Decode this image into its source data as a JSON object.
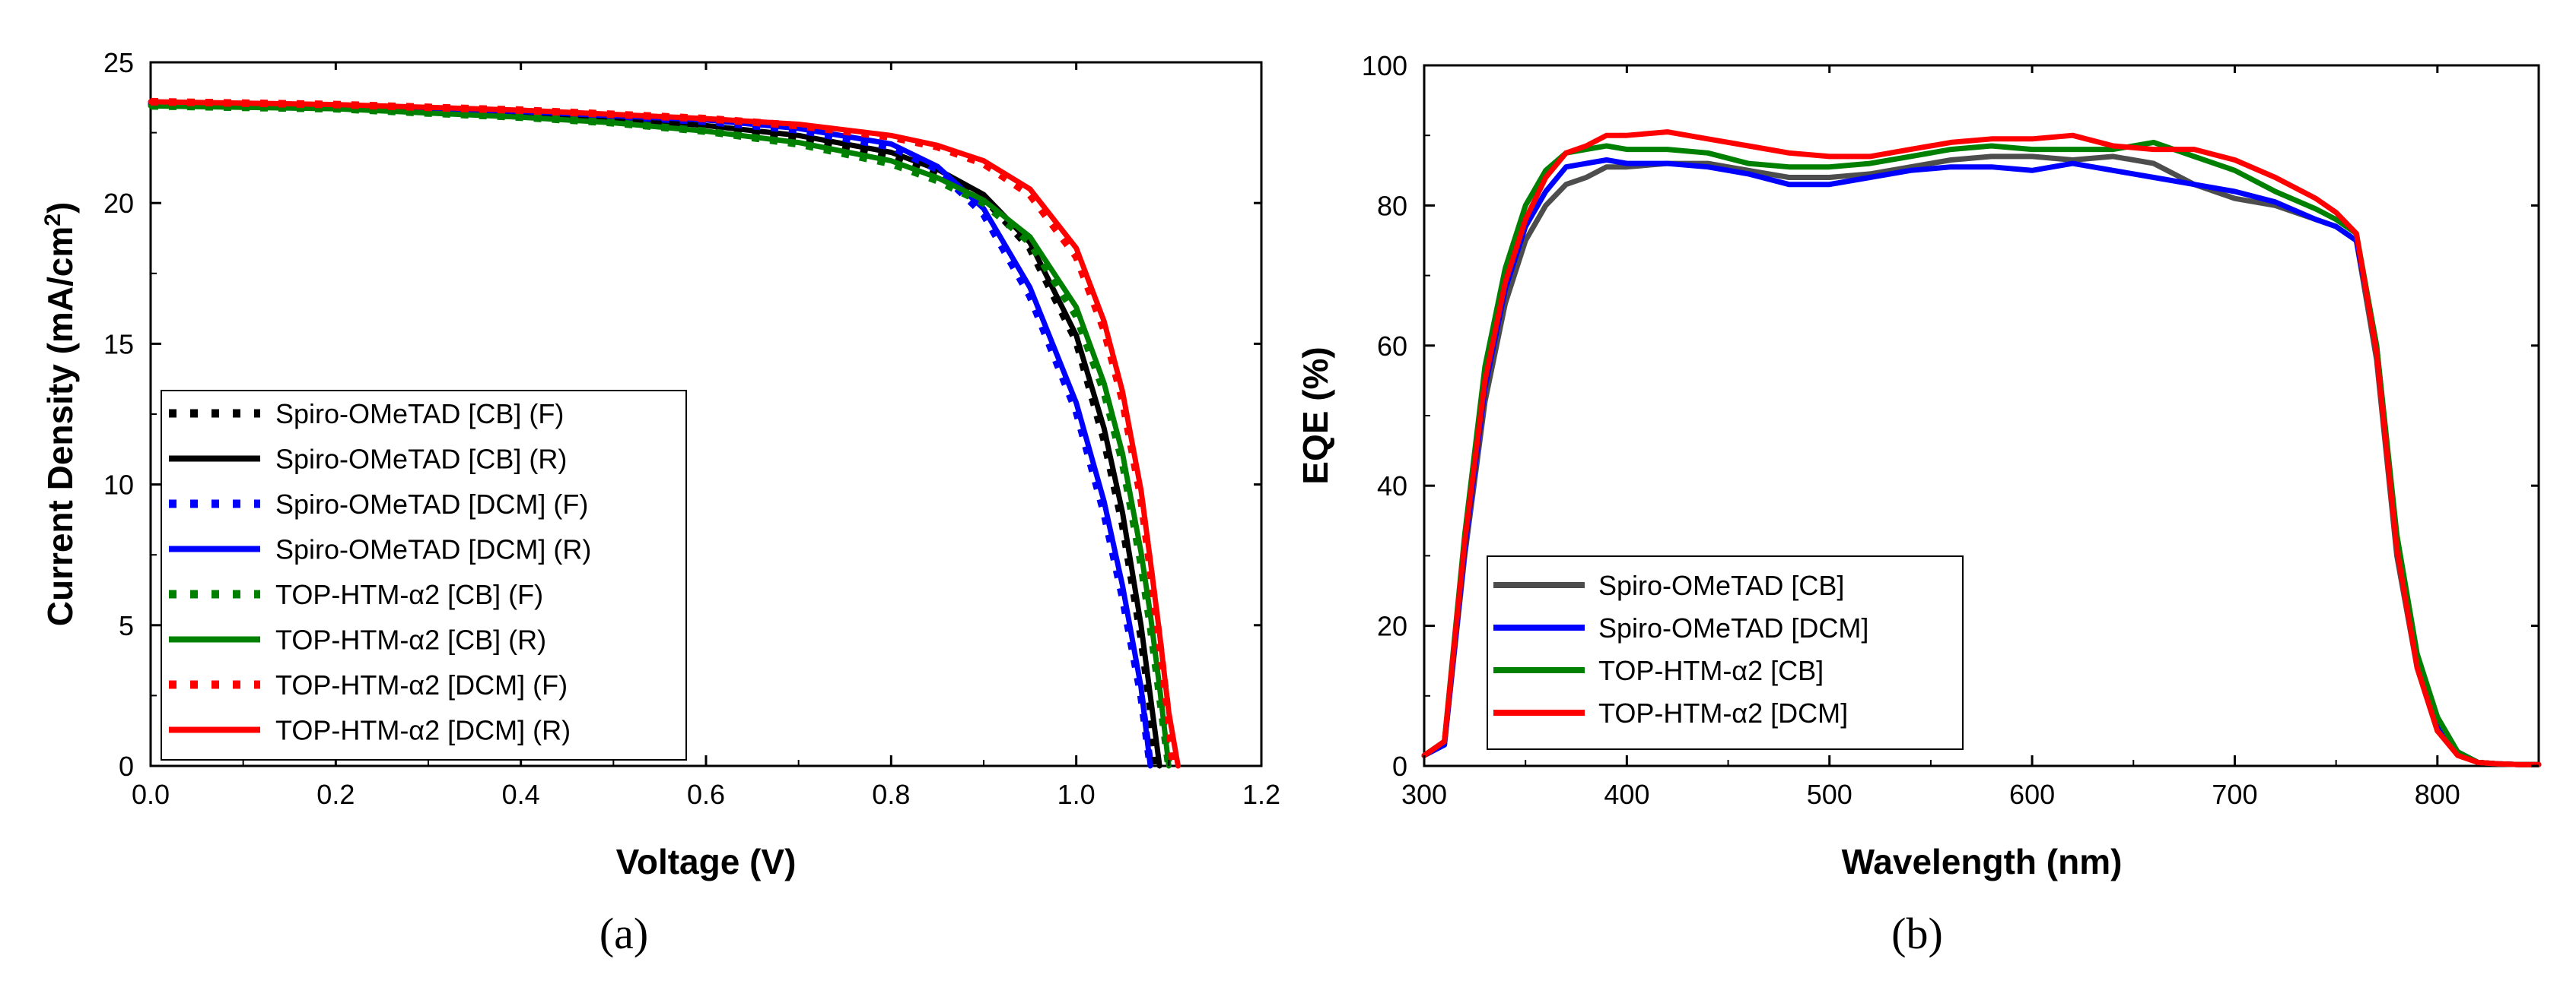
{
  "chart_data": [
    {
      "panel": "(a)",
      "type": "line",
      "xlabel": "Voltage (V)",
      "ylabel_main": "Current Density (mA/cm",
      "ylabel_sup": "2",
      "ylabel_end": ")",
      "xlim": [
        0.0,
        1.2
      ],
      "ylim": [
        0,
        25
      ],
      "xticks": [
        0.0,
        0.2,
        0.4,
        0.6,
        0.8,
        1.0,
        1.2
      ],
      "xtick_labels": [
        "0.0",
        "0.2",
        "0.4",
        "0.6",
        "0.8",
        "1.0",
        "1.2"
      ],
      "yticks": [
        0,
        5,
        10,
        15,
        20,
        25
      ],
      "ytick_labels": [
        "0",
        "5",
        "10",
        "15",
        "20",
        "25"
      ],
      "legend_position": "bottom-left",
      "series": [
        {
          "name": "Spiro-OMeTAD [CB] (F)",
          "color": "#000000",
          "style": "dotted",
          "x": [
            0.0,
            0.1,
            0.2,
            0.3,
            0.4,
            0.5,
            0.6,
            0.7,
            0.8,
            0.85,
            0.9,
            0.95,
            1.0,
            1.03,
            1.05,
            1.07,
            1.08,
            1.085
          ],
          "y": [
            23.5,
            23.45,
            23.4,
            23.3,
            23.2,
            23.0,
            22.7,
            22.3,
            21.7,
            21.1,
            20.2,
            18.4,
            15.1,
            11.6,
            8.6,
            4.6,
            2.1,
            0.0
          ]
        },
        {
          "name": "Spiro-OMeTAD [CB] (R)",
          "color": "#000000",
          "style": "solid",
          "x": [
            0.0,
            0.1,
            0.2,
            0.3,
            0.4,
            0.5,
            0.6,
            0.7,
            0.8,
            0.85,
            0.9,
            0.95,
            1.0,
            1.03,
            1.05,
            1.07,
            1.08,
            1.09
          ],
          "y": [
            23.5,
            23.45,
            23.4,
            23.3,
            23.2,
            23.0,
            22.75,
            22.4,
            21.8,
            21.2,
            20.3,
            18.6,
            15.3,
            12.0,
            9.0,
            5.0,
            2.5,
            0.0
          ]
        },
        {
          "name": "Spiro-OMeTAD [DCM] (F)",
          "color": "#0000ff",
          "style": "dotted",
          "x": [
            0.0,
            0.1,
            0.2,
            0.3,
            0.4,
            0.5,
            0.6,
            0.7,
            0.8,
            0.85,
            0.9,
            0.95,
            1.0,
            1.03,
            1.05,
            1.07,
            1.08
          ],
          "y": [
            23.55,
            23.5,
            23.45,
            23.35,
            23.25,
            23.1,
            22.9,
            22.6,
            22.0,
            21.2,
            19.6,
            16.7,
            12.6,
            9.0,
            6.0,
            2.5,
            0.0
          ]
        },
        {
          "name": "Spiro-OMeTAD [DCM] (R)",
          "color": "#0000ff",
          "style": "solid",
          "x": [
            0.0,
            0.1,
            0.2,
            0.3,
            0.4,
            0.5,
            0.6,
            0.7,
            0.8,
            0.85,
            0.9,
            0.95,
            1.0,
            1.03,
            1.05,
            1.07,
            1.08
          ],
          "y": [
            23.55,
            23.5,
            23.45,
            23.35,
            23.25,
            23.1,
            22.95,
            22.65,
            22.1,
            21.3,
            19.8,
            17.0,
            12.9,
            9.4,
            6.4,
            2.8,
            0.0
          ]
        },
        {
          "name": "TOP-HTM-α2 [CB] (F)",
          "color": "#008000",
          "style": "dotted",
          "x": [
            0.0,
            0.1,
            0.2,
            0.3,
            0.4,
            0.5,
            0.6,
            0.7,
            0.8,
            0.85,
            0.9,
            0.95,
            1.0,
            1.03,
            1.05,
            1.07,
            1.08,
            1.09,
            1.1
          ],
          "y": [
            23.45,
            23.4,
            23.35,
            23.2,
            23.05,
            22.85,
            22.55,
            22.1,
            21.4,
            20.8,
            20.0,
            18.6,
            16.0,
            13.3,
            10.8,
            7.2,
            5.0,
            2.5,
            0.0
          ]
        },
        {
          "name": "TOP-HTM-α2 [CB] (R)",
          "color": "#008000",
          "style": "solid",
          "x": [
            0.0,
            0.1,
            0.2,
            0.3,
            0.4,
            0.5,
            0.6,
            0.7,
            0.8,
            0.85,
            0.9,
            0.95,
            1.0,
            1.03,
            1.05,
            1.07,
            1.08,
            1.09,
            1.1
          ],
          "y": [
            23.45,
            23.4,
            23.35,
            23.2,
            23.05,
            22.85,
            22.55,
            22.15,
            21.5,
            20.9,
            20.1,
            18.8,
            16.3,
            13.6,
            11.1,
            7.6,
            5.4,
            2.8,
            0.0
          ]
        },
        {
          "name": "TOP-HTM-α2 [DCM] (F)",
          "color": "#ff0000",
          "style": "dotted",
          "x": [
            0.0,
            0.1,
            0.2,
            0.3,
            0.4,
            0.5,
            0.6,
            0.7,
            0.8,
            0.85,
            0.9,
            0.95,
            1.0,
            1.03,
            1.05,
            1.07,
            1.08,
            1.09,
            1.1,
            1.105
          ],
          "y": [
            23.6,
            23.55,
            23.5,
            23.4,
            23.3,
            23.15,
            23.0,
            22.75,
            22.35,
            22.0,
            21.4,
            20.3,
            18.1,
            15.5,
            13.0,
            9.5,
            7.0,
            4.4,
            1.6,
            0.0
          ]
        },
        {
          "name": "TOP-HTM-α2 [DCM] (R)",
          "color": "#ff0000",
          "style": "solid",
          "x": [
            0.0,
            0.1,
            0.2,
            0.3,
            0.4,
            0.5,
            0.6,
            0.7,
            0.8,
            0.85,
            0.9,
            0.95,
            1.0,
            1.03,
            1.05,
            1.07,
            1.08,
            1.09,
            1.1,
            1.11
          ],
          "y": [
            23.6,
            23.55,
            23.5,
            23.4,
            23.3,
            23.15,
            23.0,
            22.8,
            22.4,
            22.05,
            21.5,
            20.5,
            18.4,
            15.8,
            13.3,
            9.8,
            7.3,
            4.7,
            1.9,
            0.0
          ]
        }
      ]
    },
    {
      "panel": "(b)",
      "type": "line",
      "xlabel": "Wavelength (nm)",
      "ylabel": "EQE (%)",
      "xlim": [
        300,
        850
      ],
      "ylim": [
        0,
        100
      ],
      "xticks": [
        300,
        400,
        500,
        600,
        700,
        800
      ],
      "xtick_labels": [
        "300",
        "400",
        "500",
        "600",
        "700",
        "800"
      ],
      "yticks": [
        0,
        20,
        40,
        60,
        80,
        100
      ],
      "ytick_labels": [
        "0",
        "20",
        "40",
        "60",
        "80",
        "100"
      ],
      "legend_position": "bottom-left",
      "series": [
        {
          "name": "Spiro-OMeTAD [CB]",
          "color": "#4d4d4d",
          "style": "solid",
          "x": [
            300,
            310,
            320,
            330,
            340,
            350,
            360,
            370,
            380,
            390,
            400,
            420,
            440,
            460,
            480,
            500,
            520,
            540,
            560,
            580,
            600,
            620,
            640,
            660,
            680,
            700,
            720,
            740,
            750,
            760,
            770,
            780,
            790,
            800,
            810,
            820,
            830,
            840,
            850
          ],
          "y": [
            1.5,
            3,
            30,
            52,
            66,
            75,
            80,
            83,
            84,
            85.5,
            85.5,
            86,
            86,
            85,
            84,
            84,
            84.5,
            85.5,
            86.5,
            87,
            87,
            86.5,
            87,
            86,
            83,
            81,
            80,
            78,
            77,
            75,
            58,
            30,
            14,
            5,
            2,
            0.5,
            0.3,
            0.2,
            0.2
          ]
        },
        {
          "name": "Spiro-OMeTAD [DCM]",
          "color": "#0000ff",
          "style": "solid",
          "x": [
            300,
            310,
            320,
            330,
            340,
            350,
            360,
            370,
            380,
            390,
            400,
            420,
            440,
            460,
            480,
            500,
            520,
            540,
            560,
            580,
            600,
            620,
            640,
            660,
            680,
            700,
            720,
            740,
            750,
            760,
            770,
            780,
            790,
            800,
            810,
            820,
            830,
            840,
            850
          ],
          "y": [
            1.5,
            3,
            31,
            54,
            68,
            77,
            82,
            85.5,
            86,
            86.5,
            86,
            86,
            85.5,
            84.5,
            83,
            83,
            84,
            85,
            85.5,
            85.5,
            85,
            86,
            85,
            84,
            83,
            82,
            80.5,
            78,
            77,
            75,
            60,
            32,
            15,
            6,
            2,
            0.5,
            0.3,
            0.2,
            0.2
          ]
        },
        {
          "name": "TOP-HTM-α2 [CB]",
          "color": "#008000",
          "style": "solid",
          "x": [
            300,
            310,
            320,
            330,
            340,
            350,
            360,
            370,
            380,
            390,
            400,
            420,
            440,
            460,
            480,
            500,
            520,
            540,
            560,
            580,
            600,
            620,
            640,
            660,
            680,
            700,
            720,
            740,
            750,
            760,
            770,
            780,
            790,
            800,
            810,
            820,
            830,
            840,
            850
          ],
          "y": [
            1.5,
            3.5,
            33,
            57,
            71,
            80,
            85,
            87.5,
            88,
            88.5,
            88,
            88,
            87.5,
            86,
            85.5,
            85.5,
            86,
            87,
            88,
            88.5,
            88,
            88,
            88,
            89,
            87,
            85,
            82,
            79.5,
            78,
            76,
            60,
            33,
            16,
            7,
            2,
            0.5,
            0.3,
            0.2,
            0.2
          ]
        },
        {
          "name": "TOP-HTM-α2 [DCM]",
          "color": "#ff0000",
          "style": "solid",
          "x": [
            300,
            310,
            320,
            330,
            340,
            350,
            360,
            370,
            380,
            390,
            400,
            420,
            440,
            460,
            480,
            500,
            520,
            540,
            560,
            580,
            600,
            620,
            640,
            660,
            680,
            700,
            720,
            740,
            750,
            760,
            770,
            780,
            790,
            800,
            810,
            820,
            830,
            840,
            850
          ],
          "y": [
            1.5,
            3.5,
            32,
            55,
            69,
            78,
            84,
            87.5,
            88.5,
            90,
            90,
            90.5,
            89.5,
            88.5,
            87.5,
            87,
            87,
            88,
            89,
            89.5,
            89.5,
            90,
            88.5,
            88,
            88,
            86.5,
            84,
            81,
            79,
            76,
            59,
            31,
            14,
            5,
            1.5,
            0.5,
            0.3,
            0.2,
            0.2
          ]
        }
      ]
    }
  ]
}
